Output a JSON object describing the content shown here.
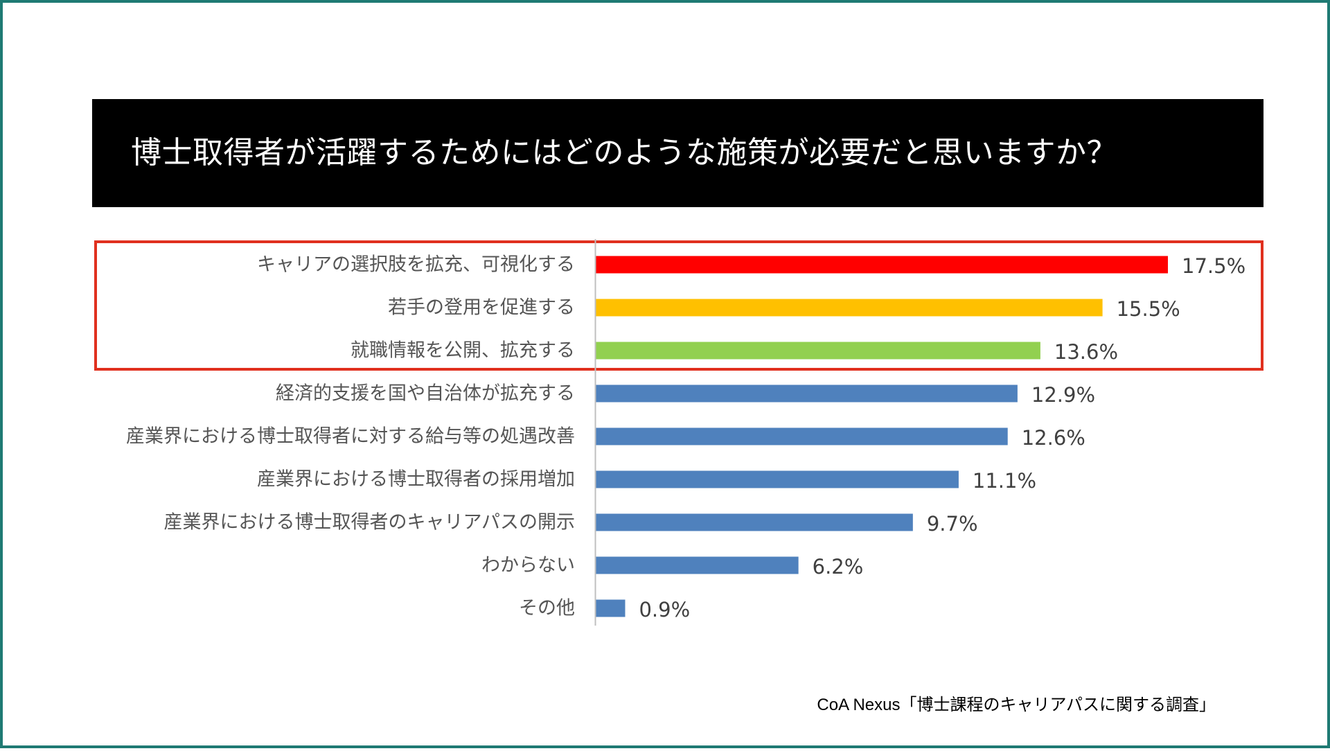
{
  "chart_data": {
    "type": "bar",
    "orientation": "horizontal",
    "title": "博士取得者が活躍するためにはどのような施策が必要だと思いますか？",
    "categories": [
      "キャリアの選択肢を拡充、可視化する",
      "若手の登用を促進する",
      "就職情報を公開、拡充する",
      "経済的支援を国や自治体が拡充する",
      "産業界における博士取得者に対する給与等の処遇改善",
      "産業界における博士取得者の採用増加",
      "産業界における博士取得者のキャリアパスの開示",
      "わからない",
      "その他"
    ],
    "values": [
      17.5,
      15.5,
      13.6,
      12.9,
      12.6,
      11.1,
      9.7,
      6.2,
      0.9
    ],
    "value_labels": [
      "17.5%",
      "15.5%",
      "13.6%",
      "12.9%",
      "12.6%",
      "11.1%",
      "9.7%",
      "6.2%",
      "0.9%"
    ],
    "colors": [
      "#ff0000",
      "#ffc000",
      "#92d050",
      "#4f81bd",
      "#4f81bd",
      "#4f81bd",
      "#4f81bd",
      "#4f81bd",
      "#4f81bd"
    ],
    "xlim": [
      0,
      17.5
    ],
    "highlight": {
      "categories_highlighted": 3,
      "border_color": "#e0301e"
    },
    "grid": false,
    "legend": "none"
  },
  "source": "CoA Nexus「博士課程のキャリアパスに関する調査」",
  "colors": {
    "frame": "#1f7a73",
    "title_bg": "#000000",
    "title_text": "#ffffff",
    "axis": "#bfbfbf"
  }
}
